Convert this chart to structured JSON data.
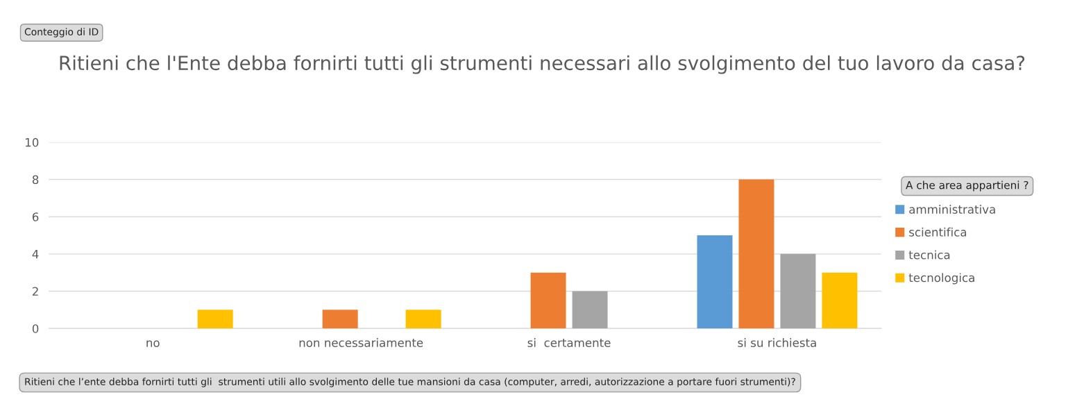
{
  "chart_data": {
    "type": "bar",
    "title": "Ritieni che l'Ente debba fornirti tutti gli strumenti necessari allo svolgimento del tuo lavoro da casa?",
    "annotations": [
      "Conteggio di ID"
    ],
    "xlabel": "Ritieni che l’ente debba fornirti tutti gli  strumenti utili allo svolgimento delle tue mansioni da casa (computer, arredi, autorizzazione a portare fuori strumenti)?",
    "legend_title": "A che area appartieni ?",
    "categories": [
      "no",
      "non necessariamente",
      "si  certamente",
      "si su richiesta"
    ],
    "series": [
      {
        "name": "amministrativa",
        "color": "#5b9bd5",
        "values": [
          null,
          null,
          null,
          5
        ]
      },
      {
        "name": "scientifica",
        "color": "#ed7d31",
        "values": [
          null,
          1,
          3,
          8
        ]
      },
      {
        "name": "tecnica",
        "color": "#a5a5a5",
        "values": [
          null,
          null,
          2,
          4
        ]
      },
      {
        "name": "tecnologica",
        "color": "#ffc000",
        "values": [
          1,
          1,
          null,
          3
        ]
      }
    ],
    "ylim": [
      0,
      10
    ],
    "yticks": [
      0,
      2,
      4,
      6,
      8,
      10
    ],
    "grid": "y",
    "legend": "right"
  }
}
